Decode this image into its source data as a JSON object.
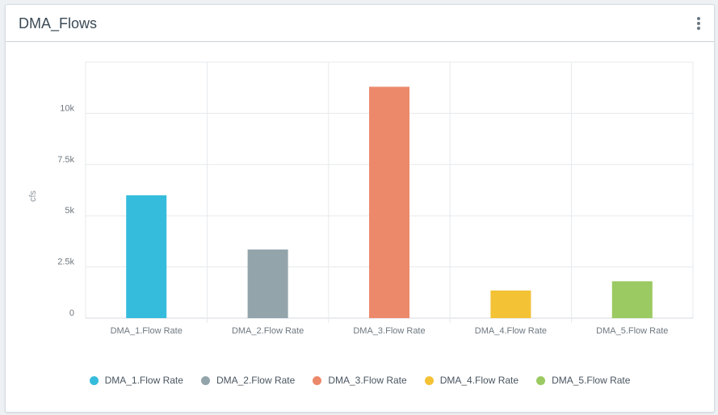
{
  "header": {
    "title": "DMA_Flows",
    "menu_icon": "kebab-menu-icon"
  },
  "colors": {
    "DMA_1.Flow Rate": "#35bcdc",
    "DMA_2.Flow Rate": "#93a4ab",
    "DMA_3.Flow Rate": "#ec896b",
    "DMA_4.Flow Rate": "#f3c235",
    "DMA_5.Flow Rate": "#9bc962"
  },
  "chart_data": {
    "type": "bar",
    "title": "",
    "xlabel": "",
    "ylabel": "cfs",
    "categories": [
      "DMA_1.Flow Rate",
      "DMA_2.Flow Rate",
      "DMA_3.Flow Rate",
      "DMA_4.Flow Rate",
      "DMA_5.Flow Rate"
    ],
    "series": [
      {
        "name": "DMA_1.Flow Rate",
        "values": [
          6000,
          null,
          null,
          null,
          null
        ]
      },
      {
        "name": "DMA_2.Flow Rate",
        "values": [
          null,
          3350,
          null,
          null,
          null
        ]
      },
      {
        "name": "DMA_3.Flow Rate",
        "values": [
          null,
          null,
          11300,
          null,
          null
        ]
      },
      {
        "name": "DMA_4.Flow Rate",
        "values": [
          null,
          null,
          null,
          1350,
          null
        ]
      },
      {
        "name": "DMA_5.Flow Rate",
        "values": [
          null,
          null,
          null,
          null,
          1800
        ]
      }
    ],
    "ylim": [
      0,
      12500
    ],
    "yticks": [
      0,
      2500,
      5000,
      7500,
      10000
    ],
    "ytick_labels": [
      "0",
      "2.5k",
      "5k",
      "7.5k",
      "10k"
    ],
    "grid": true,
    "legend_position": "bottom"
  }
}
